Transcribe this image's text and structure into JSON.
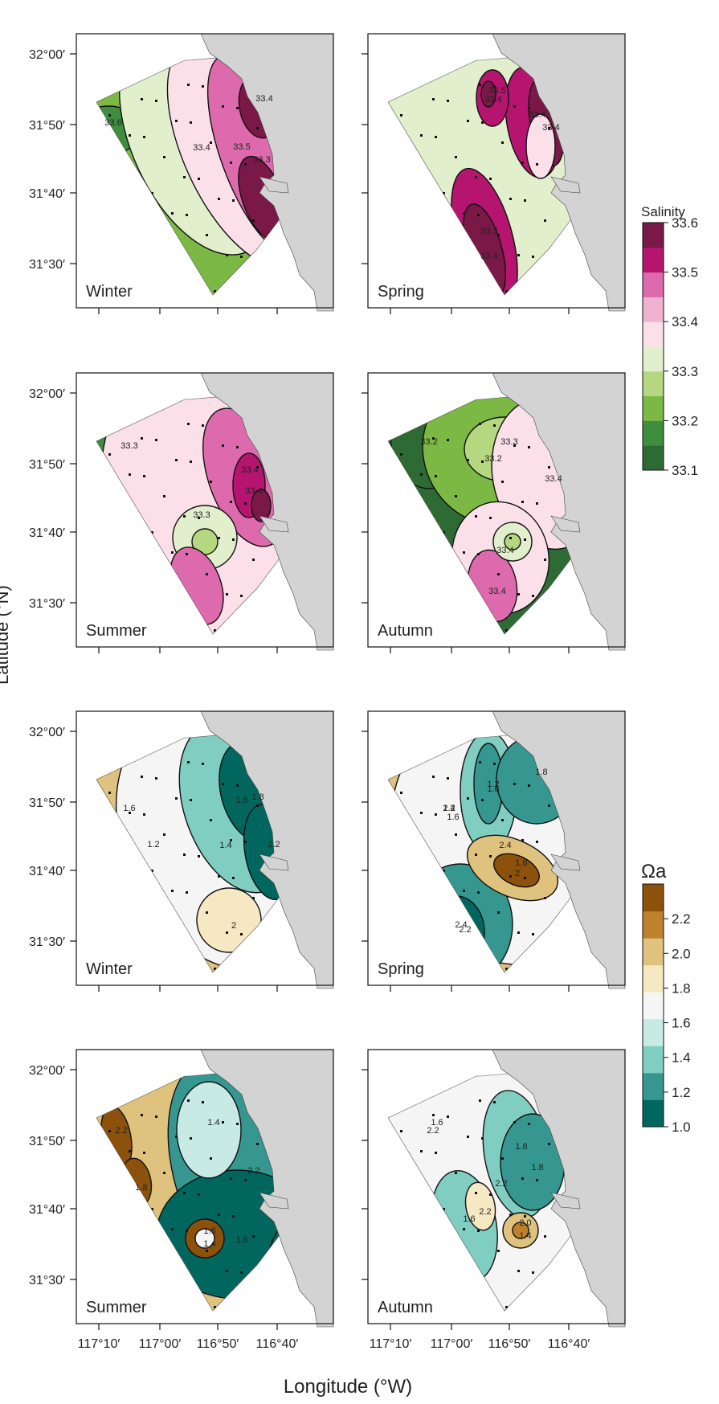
{
  "figure": {
    "ylabel": "Latitude (°N)",
    "xlabel": "Longitude (°W)",
    "lat_ticks": [
      "32°00′",
      "31°50′",
      "31°40′",
      "31°30′"
    ],
    "lon_ticks": [
      "117°10′",
      "117°00′",
      "116°50′",
      "116°40′"
    ]
  },
  "colors": {
    "land": "#d3d3d3",
    "salinity_ramp": [
      "#2e6b34",
      "#3f8d3f",
      "#7bb844",
      "#b5d77f",
      "#e2efcd",
      "#fbe0ea",
      "#efb2d1",
      "#dc6aad",
      "#b5156f",
      "#7a1848"
    ],
    "omega_ramp": [
      "#01665e",
      "#35978f",
      "#80cdc1",
      "#c7eae5",
      "#f5f5f5",
      "#f6e8c3",
      "#dfc27d",
      "#bf812d",
      "#8c510a"
    ]
  },
  "chart_data": [
    {
      "type": "heatmap",
      "variable": "Salinity",
      "legend_title": "Salinity",
      "legend_ticks": [
        "33.6",
        "33.5",
        "33.4",
        "33.3",
        "33.2",
        "33.1"
      ],
      "legend_range": [
        33.1,
        33.6
      ],
      "panels": [
        {
          "season": "Winter",
          "contour_labels": [
            "33.6",
            "33.4",
            "33.5",
            "33.3",
            "33.4"
          ]
        },
        {
          "season": "Spring",
          "contour_labels": [
            "33.4",
            "33.4",
            "33.5",
            "33.4",
            "33.3",
            "33.4"
          ]
        },
        {
          "season": "Summer",
          "contour_labels": [
            "33.3",
            "33.3",
            "33.4",
            "33.4"
          ]
        },
        {
          "season": "Autumn",
          "contour_labels": [
            "33.2",
            "33.2",
            "33.3",
            "33.4",
            "33.4",
            "33.4"
          ]
        }
      ]
    },
    {
      "type": "heatmap",
      "variable": "Ωa",
      "legend_title": "Ωa",
      "legend_ticks": [
        "2.2",
        "2.0",
        "1.8",
        "1.6",
        "1.4",
        "1.2",
        "1.0"
      ],
      "legend_range": [
        1.0,
        2.4
      ],
      "panels": [
        {
          "season": "Winter",
          "contour_labels": [
            "1.6",
            "1.4",
            "1.6",
            "1.8",
            "2.2",
            "2",
            "1.2"
          ]
        },
        {
          "season": "Spring",
          "contour_labels": [
            "2.2",
            "2.4",
            "1.2",
            "1.6",
            "1.8",
            "2.2",
            "2.4",
            "2",
            "1.6",
            "1.6",
            "1.4"
          ]
        },
        {
          "season": "Summer",
          "contour_labels": [
            "2.2",
            "1.8",
            "2.2",
            "1.6",
            "1.6",
            "1.4",
            "1.4"
          ]
        },
        {
          "season": "Autumn",
          "contour_labels": [
            "2.2",
            "2.2",
            "1.8",
            "1.8",
            "1.6",
            "2.2",
            "2.0",
            "1.4",
            "1.6"
          ]
        }
      ]
    }
  ]
}
